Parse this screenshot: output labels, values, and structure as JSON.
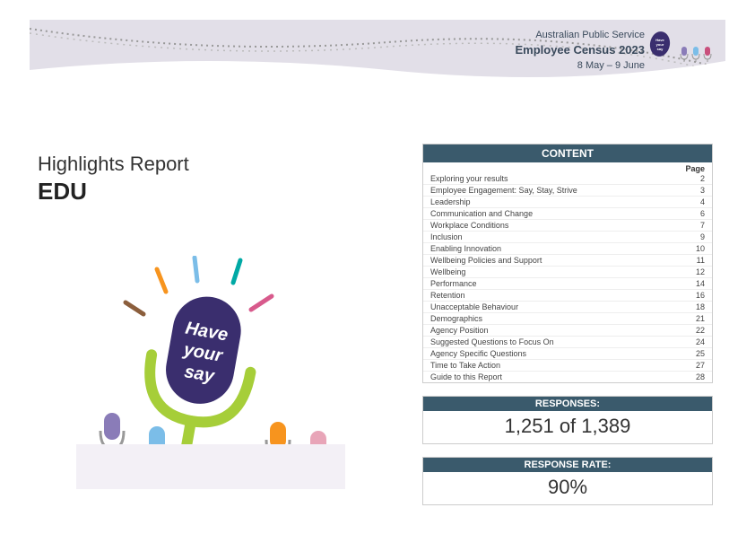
{
  "header": {
    "line1": "Australian Public Service",
    "line2": "Employee Census 2023",
    "line3": "8 May – 9 June",
    "banner_bg": "#e2dfe8",
    "badge_bg": "#3a2e6e",
    "badge_text": "Have your say"
  },
  "report": {
    "title": "Highlights Report",
    "subtitle": "EDU"
  },
  "illustration": {
    "main_mic_text1": "Have",
    "main_mic_text2": "your",
    "main_mic_text3": "say",
    "main_mic_color": "#3a2e6e",
    "stand_color": "#a6ce39",
    "ray_colors": [
      "#f7941e",
      "#7bbde8",
      "#00a9a5",
      "#d85a8c",
      "#8b5e3c"
    ],
    "small_mic_colors": [
      "#8a7cb8",
      "#7bbde8",
      "#f7941e",
      "#e8a5b8"
    ]
  },
  "content": {
    "header": "CONTENT",
    "page_label": "Page",
    "rows": [
      {
        "label": "Exploring your results",
        "page": "2"
      },
      {
        "label": "Employee Engagement: Say, Stay, Strive",
        "page": "3"
      },
      {
        "label": "Leadership",
        "page": "4"
      },
      {
        "label": "Communication and Change",
        "page": "6"
      },
      {
        "label": "Workplace Conditions",
        "page": "7"
      },
      {
        "label": "Inclusion",
        "page": "9"
      },
      {
        "label": "Enabling Innovation",
        "page": "10"
      },
      {
        "label": "Wellbeing Policies and Support",
        "page": "11"
      },
      {
        "label": "Wellbeing",
        "page": "12"
      },
      {
        "label": "Performance",
        "page": "14"
      },
      {
        "label": "Retention",
        "page": "16"
      },
      {
        "label": "Unacceptable Behaviour",
        "page": "18"
      },
      {
        "label": "Demographics",
        "page": "21"
      },
      {
        "label": "Agency Position",
        "page": "22"
      },
      {
        "label": "Suggested Questions to Focus On",
        "page": "24"
      },
      {
        "label": "Agency Specific Questions",
        "page": "25"
      },
      {
        "label": "Time to Take Action",
        "page": "27"
      },
      {
        "label": "Guide to this Report",
        "page": "28"
      }
    ]
  },
  "responses": {
    "header": "RESPONSES:",
    "value": "1,251 of 1,389"
  },
  "response_rate": {
    "header": "RESPONSE RATE:",
    "value": "90%"
  },
  "colors": {
    "panel_header": "#3a5a6c",
    "text_dark": "#333333"
  }
}
